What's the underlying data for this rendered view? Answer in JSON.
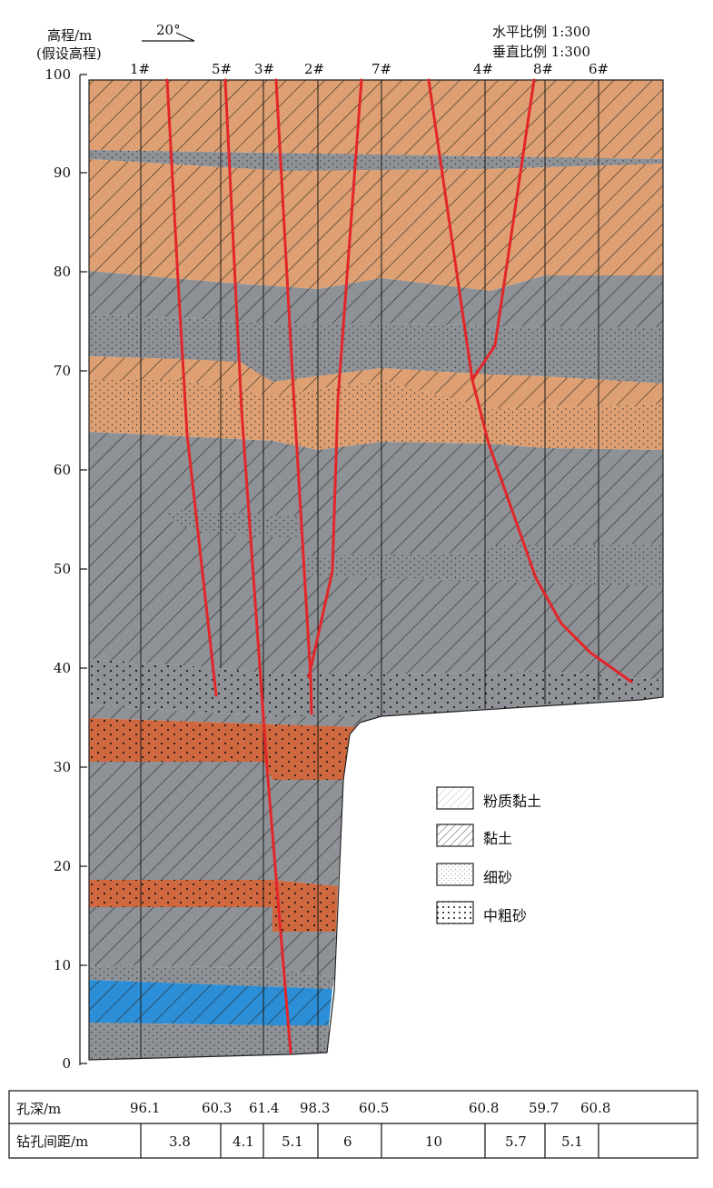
{
  "axis": {
    "title_line1": "高程/m",
    "title_line2": "(假设高程)",
    "ticks": [
      "0",
      "10",
      "20",
      "30",
      "40",
      "50",
      "60",
      "70",
      "80",
      "90",
      "100"
    ]
  },
  "dip_angle": "20°",
  "scale": {
    "horizontal": "水平比例 1:300",
    "vertical": "垂直比例 1:300"
  },
  "boreholes": [
    "1#",
    "5#",
    "3#",
    "2#",
    "7#",
    "4#",
    "8#",
    "6#"
  ],
  "legend": [
    {
      "label": "粉质黏土",
      "pattern": "silty-clay"
    },
    {
      "label": "黏土",
      "pattern": "clay"
    },
    {
      "label": "细砂",
      "pattern": "fine-sand"
    },
    {
      "label": "中粗砂",
      "pattern": "coarse-sand"
    }
  ],
  "colors": {
    "orange_clay": "#dea072",
    "gray_layer": "#8e9196",
    "red_brown_sand": "#d0683f",
    "blue_layer": "#2b8ed6",
    "fault_line": "#e3262a"
  },
  "table": {
    "row1_label": "孔深/m",
    "depths": [
      "96.1",
      "60.3",
      "61.4",
      "98.3",
      "60.5",
      "60.8",
      "59.7",
      "60.8"
    ],
    "row2_label": "钻孔间距/m",
    "spacings": [
      "3.8",
      "4.1",
      "5.1",
      "6",
      "10",
      "5.7",
      "5.1"
    ]
  }
}
